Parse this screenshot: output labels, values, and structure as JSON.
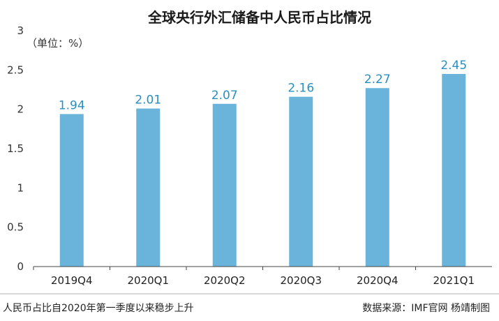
{
  "chart_data": {
    "type": "bar",
    "title": "全球央行外汇储备中人民币占比情况",
    "unit_label": "（单位：%）",
    "categories": [
      "2019Q4",
      "2020Q1",
      "2020Q2",
      "2020Q3",
      "2020Q4",
      "2021Q1"
    ],
    "values": [
      1.94,
      2.01,
      2.07,
      2.16,
      2.27,
      2.45
    ],
    "data_labels": [
      "1.94",
      "2.01",
      "2.07",
      "2.16",
      "2.27",
      "2.45"
    ],
    "y_ticks": [
      0,
      0.5,
      1,
      1.5,
      2,
      2.5,
      3
    ],
    "y_tick_labels": [
      "0",
      "0.5",
      "1",
      "1.5",
      "2",
      "2.5",
      "3"
    ],
    "ylim": [
      0,
      3
    ],
    "grid": false,
    "bar_color": "#6ab3da",
    "label_color": "#2a8fbf"
  },
  "footer": {
    "caption": "人民币占比自2020年第一季度以来稳步上升",
    "source": "数据来源：IMF官网  杨靖制图"
  }
}
